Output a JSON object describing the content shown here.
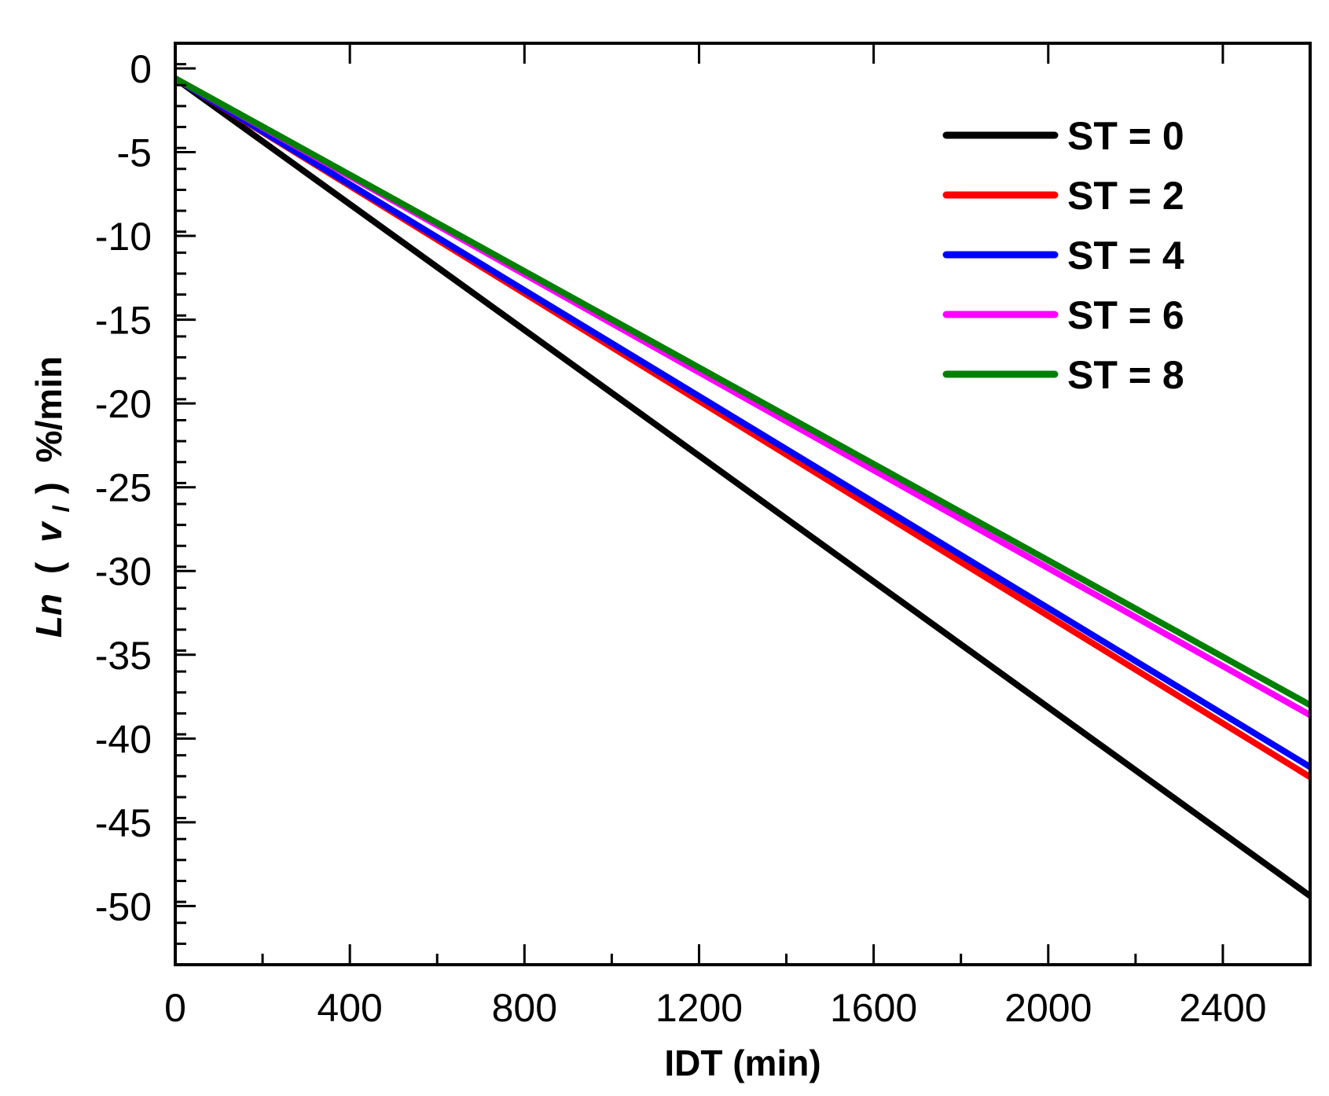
{
  "chart_data": {
    "type": "line",
    "title": "",
    "xlabel": "IDT (min)",
    "ylabel": {
      "italic_part": "Ln",
      "open_paren": "(",
      "var": "v",
      "sub": "l",
      "close_paren": ")",
      "unit": "%/min"
    },
    "xlim": [
      0,
      2600
    ],
    "ylim": [
      -53.5,
      1.5
    ],
    "xticks": [
      0,
      400,
      800,
      1200,
      1600,
      2000,
      2400
    ],
    "xtick_labels": [
      "0",
      "400",
      "800",
      "1200",
      "1600",
      "2000",
      "2400"
    ],
    "xminor": [
      200,
      600,
      1000,
      1400,
      1800,
      2200,
      2600
    ],
    "yticks": [
      0,
      -5,
      -10,
      -15,
      -20,
      -25,
      -30,
      -35,
      -40,
      -45,
      -50
    ],
    "ytick_labels": [
      "0",
      "-5",
      "-10",
      "-15",
      "-20",
      "-25",
      "-30",
      "-35",
      "-40",
      "-45",
      "-50"
    ],
    "yminor_step": 1.25,
    "legend_position": "top-right",
    "series": [
      {
        "name": "ST = 0",
        "color": "#000000",
        "x": [
          0,
          2600
        ],
        "y": [
          -0.6,
          -49.4
        ]
      },
      {
        "name": "ST = 2",
        "color": "#ff0000",
        "x": [
          0,
          2600
        ],
        "y": [
          -0.6,
          -42.3
        ]
      },
      {
        "name": "ST = 4",
        "color": "#0000ff",
        "x": [
          0,
          2600
        ],
        "y": [
          -0.6,
          -41.7
        ]
      },
      {
        "name": "ST = 6",
        "color": "#ff00ff",
        "x": [
          0,
          2600
        ],
        "y": [
          -0.6,
          -38.6
        ]
      },
      {
        "name": "ST = 8",
        "color": "#008000",
        "x": [
          0,
          2600
        ],
        "y": [
          -0.6,
          -38.0
        ]
      }
    ]
  }
}
